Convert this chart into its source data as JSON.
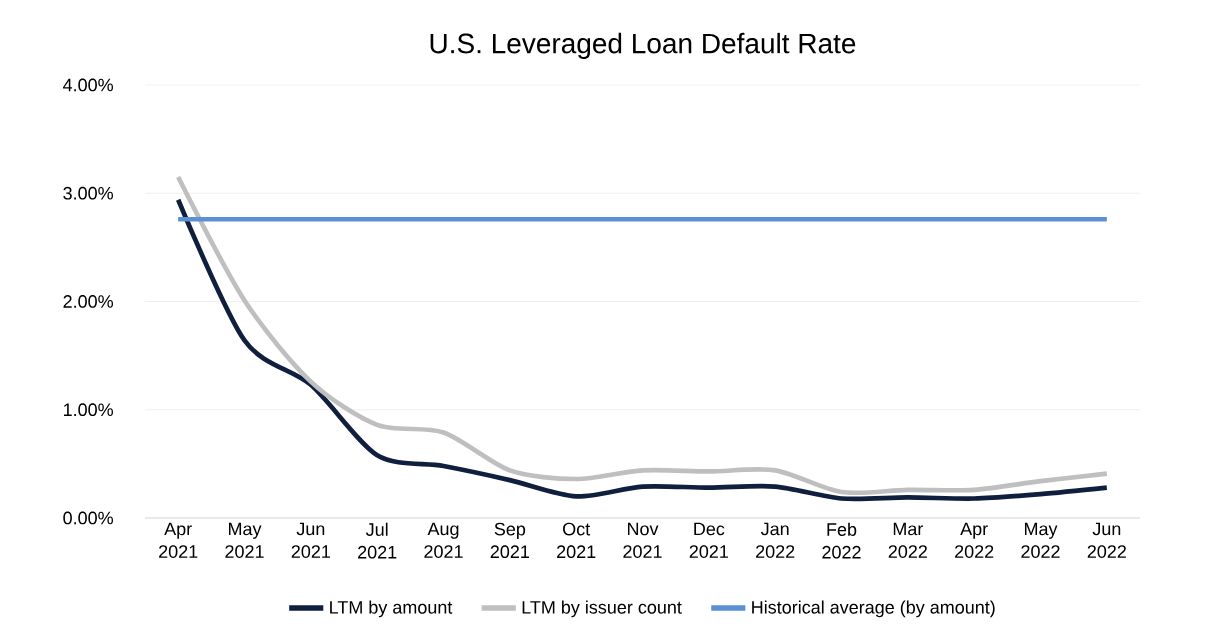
{
  "chart_data": {
    "type": "line",
    "title": "U.S. Leveraged Loan Default Rate",
    "categories": [
      "Apr 2021",
      "May 2021",
      "Jun 2021",
      "Jul 2021",
      "Aug 2021",
      "Sep 2021",
      "Oct 2021",
      "Nov 2021",
      "Dec 2021",
      "Jan 2022",
      "Feb 2022",
      "Mar 2022",
      "Apr 2022",
      "May 2022",
      "Jun 2022"
    ],
    "series": [
      {
        "name": "LTM by amount",
        "color": "#0f1f3d",
        "values": [
          2.94,
          1.64,
          1.23,
          0.58,
          0.48,
          0.35,
          0.2,
          0.29,
          0.28,
          0.29,
          0.18,
          0.19,
          0.18,
          0.22,
          0.28
        ]
      },
      {
        "name": "LTM by issuer count",
        "color": "#bfbfbf",
        "values": [
          3.15,
          2.01,
          1.26,
          0.86,
          0.79,
          0.44,
          0.36,
          0.44,
          0.43,
          0.44,
          0.24,
          0.26,
          0.26,
          0.34,
          0.41
        ]
      },
      {
        "name": "Historical average (by amount)",
        "color": "#5b8fd6",
        "values": [
          2.76,
          2.76,
          2.76,
          2.76,
          2.76,
          2.76,
          2.76,
          2.76,
          2.76,
          2.76,
          2.76,
          2.76,
          2.76,
          2.76,
          2.76
        ]
      }
    ],
    "ylim": [
      0,
      4
    ],
    "yticks": [
      {
        "value": 0,
        "label": "0.00%"
      },
      {
        "value": 1,
        "label": "1.00%"
      },
      {
        "value": 2,
        "label": "2.00%"
      },
      {
        "value": 3,
        "label": "3.00%"
      },
      {
        "value": 4,
        "label": "4.00%"
      }
    ],
    "grid": "y",
    "legend": "bottom",
    "marker": "none",
    "line_style": "solid"
  }
}
